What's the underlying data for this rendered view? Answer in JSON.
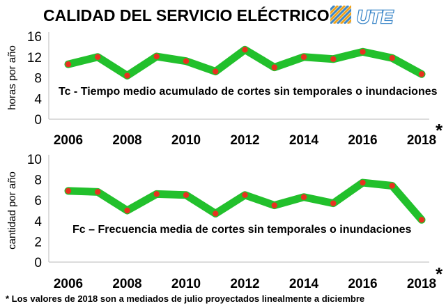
{
  "title": "CALIDAD DEL SERVICIO ELÉCTRICO",
  "logo_text": "UTE",
  "footnote": "* Los valores de 2018 son a mediados de julio proyectados linealmente a diciembre",
  "colors": {
    "line": "#22c02c",
    "marker": "#e8311f",
    "logo": "#3a86c8",
    "text": "#000000"
  },
  "chart_data": [
    {
      "type": "line",
      "title": "",
      "annotation": "Tc  - Tiempo medio acumulado de cortes sin temporales o inundaciones",
      "ylabel": "horas por año",
      "xlabel": "",
      "ylim": [
        0,
        16
      ],
      "yticks": [
        0,
        4,
        8,
        12,
        16
      ],
      "grid": false,
      "x": [
        2006,
        2007,
        2008,
        2009,
        2010,
        2011,
        2012,
        2013,
        2014,
        2015,
        2016,
        2017,
        2018
      ],
      "xticks": [
        "2006",
        "2008",
        "2010",
        "2012",
        "2014",
        "2016",
        "2018"
      ],
      "x_marker_note": "*",
      "series": [
        {
          "values": [
            10.6,
            12.0,
            8.4,
            12.1,
            11.2,
            9.2,
            13.4,
            10.0,
            12.0,
            11.6,
            13.0,
            11.8,
            8.7
          ]
        }
      ]
    },
    {
      "type": "line",
      "title": "",
      "annotation": "Fc – Frecuencia media de cortes sin temporales o inundaciones",
      "ylabel": "cantidad por año",
      "xlabel": "",
      "ylim": [
        0,
        10
      ],
      "yticks": [
        0,
        2,
        4,
        6,
        8,
        10
      ],
      "grid": false,
      "x": [
        2006,
        2007,
        2008,
        2009,
        2010,
        2011,
        2012,
        2013,
        2014,
        2015,
        2016,
        2017,
        2018
      ],
      "xticks": [
        "2006",
        "2008",
        "2010",
        "2012",
        "2014",
        "2016",
        "2018"
      ],
      "x_marker_note": "*",
      "series": [
        {
          "values": [
            6.9,
            6.8,
            5.0,
            6.6,
            6.5,
            4.7,
            6.5,
            5.5,
            6.3,
            5.7,
            7.7,
            7.4,
            4.1
          ]
        }
      ]
    }
  ]
}
